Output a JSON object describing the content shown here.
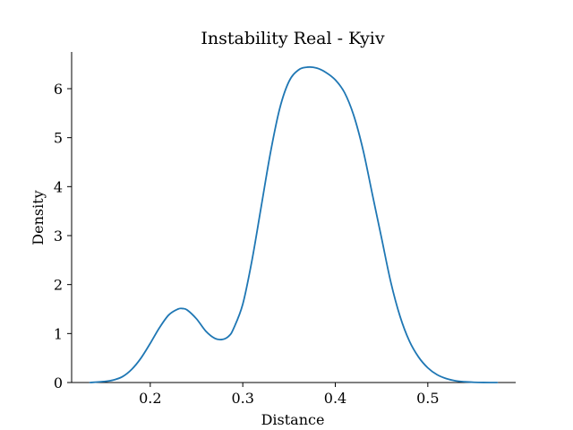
{
  "chart_data": {
    "type": "line",
    "title": "Instability Real - Kyiv",
    "xlabel": "Distance",
    "ylabel": "Density",
    "xlim": [
      0.115,
      0.595
    ],
    "ylim": [
      0,
      6.75
    ],
    "xticks": [
      0.2,
      0.3,
      0.4,
      0.5
    ],
    "xtick_labels": [
      "0.2",
      "0.3",
      "0.4",
      "0.5"
    ],
    "yticks": [
      0,
      1,
      2,
      3,
      4,
      5,
      6
    ],
    "ytick_labels": [
      "0",
      "1",
      "2",
      "3",
      "4",
      "5",
      "6"
    ],
    "grid": false,
    "legend": "none",
    "line_color": "#1f77b4",
    "series": [
      {
        "x": [
          0.135,
          0.15,
          0.16,
          0.17,
          0.18,
          0.19,
          0.2,
          0.21,
          0.22,
          0.23,
          0.235,
          0.24,
          0.25,
          0.26,
          0.27,
          0.278,
          0.285,
          0.29,
          0.3,
          0.31,
          0.32,
          0.33,
          0.34,
          0.35,
          0.36,
          0.37,
          0.38,
          0.39,
          0.4,
          0.41,
          0.42,
          0.43,
          0.44,
          0.45,
          0.46,
          0.47,
          0.48,
          0.49,
          0.5,
          0.51,
          0.52,
          0.53,
          0.54,
          0.55,
          0.56,
          0.575
        ],
        "y": [
          0.0,
          0.02,
          0.05,
          0.12,
          0.27,
          0.5,
          0.8,
          1.12,
          1.38,
          1.5,
          1.51,
          1.48,
          1.3,
          1.05,
          0.9,
          0.88,
          0.95,
          1.1,
          1.6,
          2.5,
          3.6,
          4.7,
          5.6,
          6.15,
          6.38,
          6.44,
          6.42,
          6.33,
          6.18,
          5.92,
          5.45,
          4.75,
          3.85,
          2.95,
          2.05,
          1.35,
          0.85,
          0.52,
          0.3,
          0.16,
          0.08,
          0.035,
          0.015,
          0.005,
          0.001,
          0.0
        ]
      }
    ]
  }
}
